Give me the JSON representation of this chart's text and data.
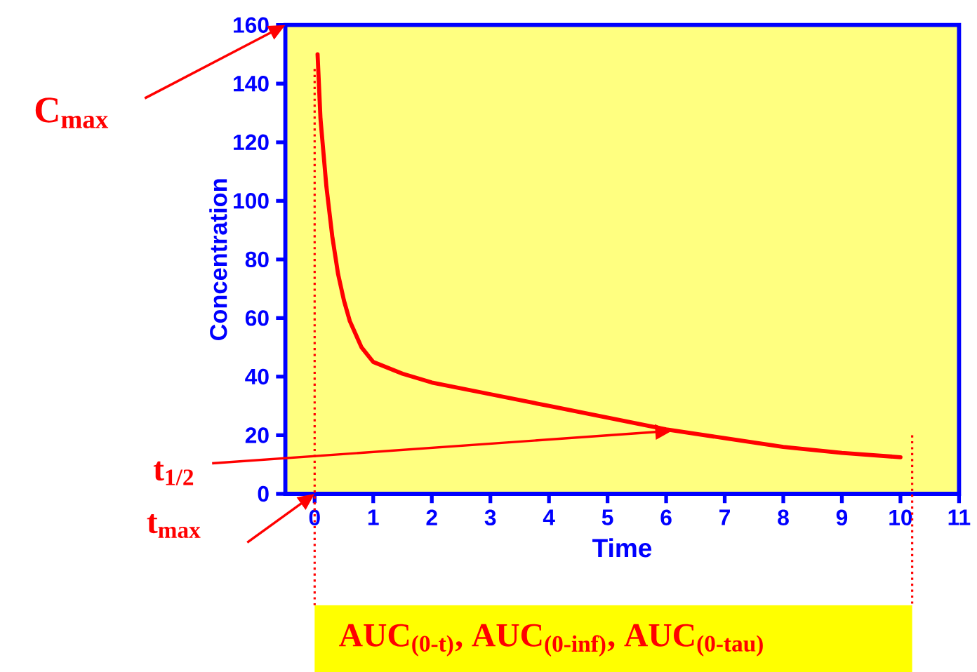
{
  "chart_data": {
    "type": "line",
    "xlabel": "Time",
    "ylabel": "Concentration",
    "color": "#ff0000",
    "marker": "none",
    "line_style": "solid",
    "x": [
      0.05,
      0.1,
      0.2,
      0.3,
      0.4,
      0.5,
      0.6,
      0.8,
      1,
      1.5,
      2,
      3,
      4,
      5,
      6,
      7,
      8,
      9,
      10
    ],
    "values": [
      150,
      128,
      105,
      88,
      75,
      66,
      59,
      50,
      45,
      41,
      38,
      34,
      30,
      26,
      22,
      19,
      16,
      14,
      12.5
    ],
    "xlim": [
      -0.5,
      11
    ],
    "ylim": [
      0,
      160
    ],
    "xticks": [
      0,
      1,
      2,
      3,
      4,
      5,
      6,
      7,
      8,
      9,
      10,
      11
    ],
    "yticks": [
      0,
      20,
      40,
      60,
      80,
      100,
      120,
      140,
      160
    ],
    "ref_lines": [
      {
        "axis": "x",
        "value": 0,
        "color": "#ff0000",
        "line_style": "dotted"
      },
      {
        "axis": "x",
        "value": 10.2,
        "color": "#ff0000",
        "line_style": "dotted"
      }
    ],
    "annotations": [
      "C$_{max}$",
      "t$_{1/2}$",
      "t$_{max}$",
      "AUC$_{(0-t)}$, AUC$_{(0-inf)}$, AUC$_{(0-tau)}$"
    ]
  }
}
